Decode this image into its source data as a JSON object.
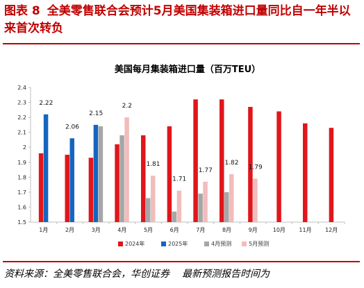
{
  "header": {
    "label": "图表 8",
    "text": "全美零售联合会预计5月美国集装箱进口量同比自一年半以来首次转负"
  },
  "source": {
    "prefix": "资料来源：全美零售联合会，华创证券",
    "suffix": "最新预测报告时间为"
  },
  "colors": {
    "title_red": "#c00000",
    "y2024": "#e0161b",
    "y2025": "#1565c0",
    "apr_forecast": "#a6a6a6",
    "may_forecast": "#f2bcbc"
  },
  "chart_data": {
    "type": "bar",
    "title": "美国每月集装箱进口量（百万TEU）",
    "categories": [
      "1月",
      "2月",
      "3月",
      "4月",
      "5月",
      "6月",
      "7月",
      "8月",
      "9月",
      "10月",
      "11月",
      "12月"
    ],
    "ylim": [
      1.5,
      2.4
    ],
    "yticks": [
      "1.5",
      "1.6",
      "1.7",
      "1.8",
      "1.9",
      "2",
      "2.1",
      "2.2",
      "2.3",
      "2.4"
    ],
    "grid": false,
    "legend_position": "bottom",
    "series": [
      {
        "name": "2024年",
        "color": "#e0161b",
        "values": [
          1.96,
          1.95,
          1.93,
          2.02,
          2.08,
          2.14,
          2.32,
          2.32,
          2.27,
          2.24,
          2.16,
          2.13
        ]
      },
      {
        "name": "2025年",
        "color": "#1565c0",
        "values": [
          2.22,
          2.06,
          2.15,
          null,
          null,
          null,
          null,
          null,
          null,
          null,
          null,
          null
        ],
        "labels": [
          "2.22",
          "2.06",
          "2.15",
          null,
          null,
          null,
          null,
          null,
          null,
          null,
          null,
          null
        ]
      },
      {
        "name": "4月预测",
        "color": "#a6a6a6",
        "values": [
          null,
          null,
          2.14,
          2.08,
          1.66,
          1.57,
          1.69,
          1.7,
          null,
          null,
          null,
          null
        ]
      },
      {
        "name": "5月预测",
        "color": "#f2bcbc",
        "values": [
          null,
          null,
          null,
          2.2,
          1.81,
          1.71,
          1.77,
          1.82,
          1.79,
          null,
          null,
          null
        ],
        "labels": [
          null,
          null,
          null,
          "2.2",
          "1.81",
          "1.71",
          "1.77",
          "1.82",
          "1.79",
          null,
          null,
          null
        ]
      }
    ]
  }
}
